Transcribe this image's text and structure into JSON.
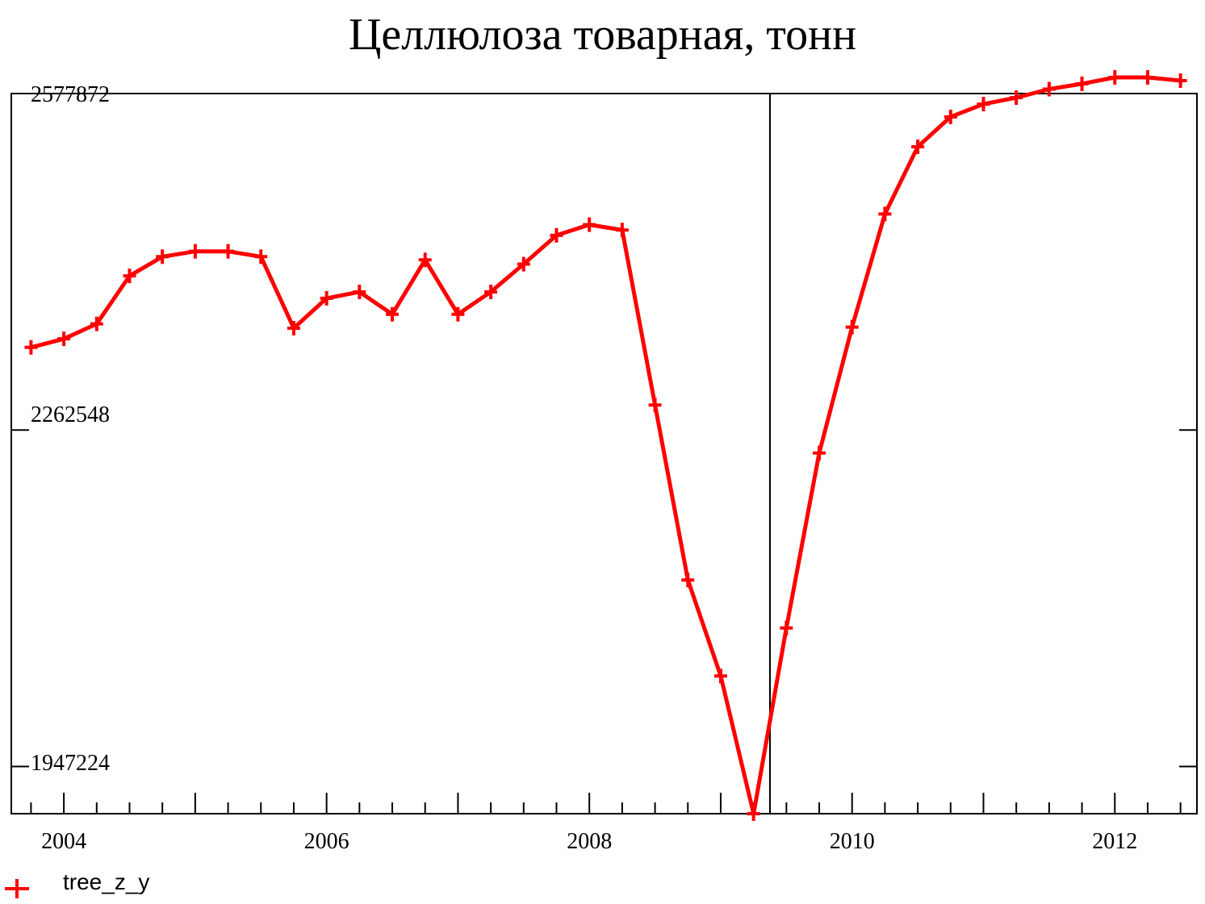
{
  "chart_data": {
    "type": "line",
    "title": "Целлюлоза товарная, тонн",
    "y_tick_labels": [
      "2577872",
      "2262548",
      "1947224"
    ],
    "x_tick_labels": [
      "2004",
      "2006",
      "2008",
      "2010",
      "2012"
    ],
    "x_ticks": [
      2004,
      2006,
      2008,
      2010,
      2012
    ],
    "y_ticks": [
      2577872,
      2262548,
      1947224
    ],
    "xlim": [
      2003.6,
      2012.625
    ],
    "ylim": [
      1903000,
      2577872
    ],
    "vertical_marker_x": 2009.375,
    "grid": false,
    "legend_position": "bottom-left",
    "series": [
      {
        "name": "tree_z_y",
        "color": "#ff0000",
        "x": [
          2003.75,
          2004.0,
          2004.25,
          2004.5,
          2004.75,
          2005.0,
          2005.25,
          2005.5,
          2005.75,
          2006.0,
          2006.25,
          2006.5,
          2006.75,
          2007.0,
          2007.25,
          2007.5,
          2007.75,
          2008.0,
          2008.25,
          2008.5,
          2008.75,
          2009.0,
          2009.25,
          2009.5,
          2009.75,
          2010.0,
          2010.25,
          2010.5,
          2010.75,
          2011.0,
          2011.25,
          2011.5,
          2011.75,
          2012.0,
          2012.25,
          2012.5
        ],
        "y": [
          2340000,
          2348000,
          2362000,
          2407000,
          2425000,
          2430000,
          2430000,
          2425000,
          2358000,
          2386000,
          2392000,
          2371000,
          2422000,
          2371000,
          2392000,
          2418000,
          2445000,
          2455000,
          2450000,
          2286000,
          2122000,
          2032000,
          1903000,
          2077000,
          2241000,
          2359000,
          2465000,
          2528000,
          2556000,
          2568000,
          2574000,
          2582000,
          2587000,
          2593000,
          2593000,
          2590000
        ]
      }
    ]
  }
}
